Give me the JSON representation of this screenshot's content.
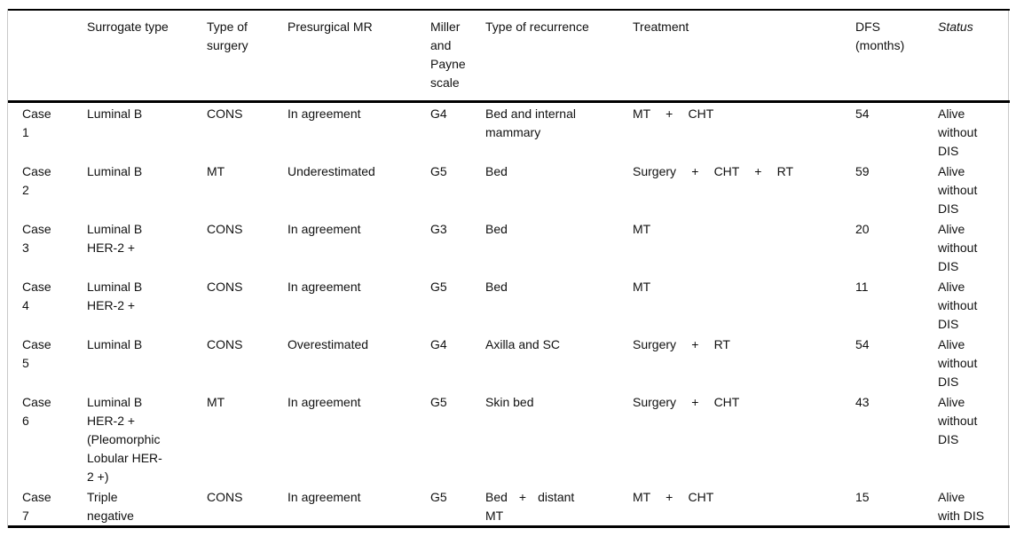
{
  "table": {
    "columns": [
      "",
      "Surrogate type",
      "Type of surgery",
      "Presurgical MR",
      "Miller and Payne scale",
      "Type of recurrence",
      "Treatment",
      "DFS (months)",
      "Status"
    ],
    "rows": [
      {
        "case": "Case 1",
        "surrogate_type": "Luminal B",
        "type_of_surgery": "CONS",
        "presurgical_mr": "In agreement",
        "miller_payne": "G4",
        "type_of_recurrence": "Bed and internal mammary",
        "treatment": "MT + CHT",
        "dfs_months": "54",
        "status": "Alive without DIS"
      },
      {
        "case": "Case 2",
        "surrogate_type": "Luminal B",
        "type_of_surgery": "MT",
        "presurgical_mr": "Underestimated",
        "miller_payne": "G5",
        "type_of_recurrence": "Bed",
        "treatment": "Surgery + CHT + RT",
        "dfs_months": "59",
        "status": "Alive without DIS"
      },
      {
        "case": "Case 3",
        "surrogate_type": "Luminal B HER-2 +",
        "type_of_surgery": "CONS",
        "presurgical_mr": "In agreement",
        "miller_payne": "G3",
        "type_of_recurrence": "Bed",
        "treatment": "MT",
        "dfs_months": "20",
        "status": "Alive without DIS"
      },
      {
        "case": "Case 4",
        "surrogate_type": "Luminal B HER-2 +",
        "type_of_surgery": "CONS",
        "presurgical_mr": "In agreement",
        "miller_payne": "G5",
        "type_of_recurrence": "Bed",
        "treatment": "MT",
        "dfs_months": "11",
        "status": "Alive without DIS"
      },
      {
        "case": "Case 5",
        "surrogate_type": "Luminal B",
        "type_of_surgery": "CONS",
        "presurgical_mr": "Overestimated",
        "miller_payne": "G4",
        "type_of_recurrence": "Axilla and SC",
        "treatment": "Surgery + RT",
        "dfs_months": "54",
        "status": "Alive without DIS"
      },
      {
        "case": "Case 6",
        "surrogate_type": "Luminal B HER-2 + (Pleomorphic Lobular HER-2 +)",
        "type_of_surgery": "MT",
        "presurgical_mr": "In agreement",
        "miller_payne": "G5",
        "type_of_recurrence": "Skin bed",
        "treatment": "Surgery + CHT",
        "dfs_months": "43",
        "status": "Alive without DIS"
      },
      {
        "case": "Case 7",
        "surrogate_type": "Triple negative",
        "type_of_surgery": "CONS",
        "presurgical_mr": "In agreement",
        "miller_payne": "G5",
        "type_of_recurrence": "Bed + distant MT",
        "treatment": "MT + CHT",
        "dfs_months": "15",
        "status": "Alive with DIS"
      }
    ]
  }
}
